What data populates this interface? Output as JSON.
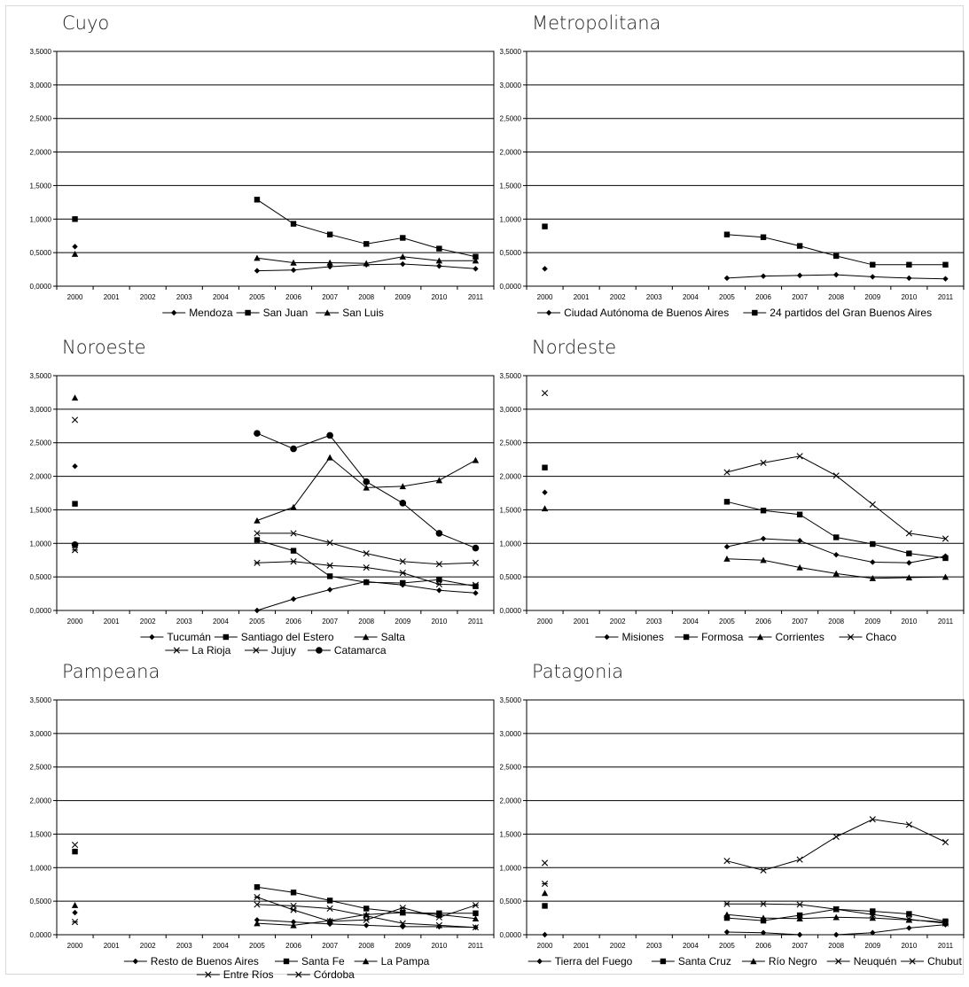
{
  "chart_data": [
    {
      "type": "line",
      "title": "Cuyo",
      "xlabel": "",
      "ylabel": "",
      "x": [
        "2000",
        "2001",
        "2002",
        "2003",
        "2004",
        "2005",
        "2006",
        "2007",
        "2008",
        "2009",
        "2010",
        "2011"
      ],
      "yticks": [
        "0,0000",
        "0,5000",
        "1,0000",
        "1,5000",
        "2,0000",
        "2,5000",
        "3,0000",
        "3,5000"
      ],
      "ylim": [
        0,
        3.5
      ],
      "grid": true,
      "legend": "bottom",
      "legend_rows": [
        [
          0,
          1,
          2
        ]
      ],
      "series": [
        {
          "name": "Mendoza",
          "marker": "diamond",
          "values": [
            0.59,
            null,
            null,
            null,
            null,
            0.23,
            0.24,
            0.29,
            0.32,
            0.33,
            0.3,
            0.26
          ]
        },
        {
          "name": "San Juan",
          "marker": "square",
          "values": [
            1.0,
            null,
            null,
            null,
            null,
            1.29,
            0.93,
            0.77,
            0.63,
            0.72,
            0.56,
            0.44
          ]
        },
        {
          "name": "San Luis",
          "marker": "triangle",
          "values": [
            0.48,
            null,
            null,
            null,
            null,
            0.42,
            0.35,
            0.35,
            0.34,
            0.44,
            0.38,
            0.38
          ]
        }
      ]
    },
    {
      "type": "line",
      "title": "Metropolitana",
      "xlabel": "",
      "ylabel": "",
      "x": [
        "2000",
        "2001",
        "2002",
        "2003",
        "2004",
        "2005",
        "2006",
        "2007",
        "2008",
        "2009",
        "2010",
        "2011"
      ],
      "yticks": [
        "0,0000",
        "0,5000",
        "1,0000",
        "1,5000",
        "2,0000",
        "2,5000",
        "3,0000",
        "3,5000"
      ],
      "ylim": [
        0,
        3.5
      ],
      "grid": true,
      "legend": "bottom",
      "legend_rows": [
        [
          0,
          1
        ]
      ],
      "series": [
        {
          "name": "Ciudad Autónoma de Buenos Aires",
          "marker": "diamond",
          "values": [
            0.26,
            null,
            null,
            null,
            null,
            0.12,
            0.15,
            0.16,
            0.17,
            0.14,
            0.12,
            0.11
          ]
        },
        {
          "name": "24 partidos del Gran Buenos Aires",
          "marker": "square",
          "values": [
            0.89,
            null,
            null,
            null,
            null,
            0.77,
            0.73,
            0.6,
            0.45,
            0.32,
            0.32,
            0.32
          ]
        }
      ]
    },
    {
      "type": "line",
      "title": "Noroeste",
      "xlabel": "",
      "ylabel": "",
      "x": [
        "2000",
        "2001",
        "2002",
        "2003",
        "2004",
        "2005",
        "2006",
        "2007",
        "2008",
        "2009",
        "2010",
        "2011"
      ],
      "yticks": [
        "0,0000",
        "0,5000",
        "1,0000",
        "1,5000",
        "2,0000",
        "2,5000",
        "3,0000",
        "3,5000"
      ],
      "ylim": [
        0,
        3.5
      ],
      "grid": true,
      "legend": "bottom",
      "legend_rows": [
        [
          0,
          1,
          2
        ],
        [
          3,
          4,
          5
        ]
      ],
      "series": [
        {
          "name": "Tucumán",
          "marker": "diamond",
          "values": [
            2.15,
            null,
            null,
            null,
            null,
            0.0,
            0.17,
            0.31,
            0.43,
            0.38,
            0.3,
            0.26
          ]
        },
        {
          "name": "Santiago del Estero",
          "marker": "square",
          "values": [
            1.59,
            null,
            null,
            null,
            null,
            1.05,
            0.89,
            0.51,
            0.42,
            0.41,
            0.46,
            0.36
          ]
        },
        {
          "name": "Salta",
          "marker": "triangle",
          "values": [
            3.17,
            null,
            null,
            null,
            null,
            1.34,
            1.54,
            2.28,
            1.83,
            1.85,
            1.94,
            2.24
          ]
        },
        {
          "name": "La Rioja",
          "marker": "plus-x",
          "values": [
            0.9,
            null,
            null,
            null,
            null,
            0.71,
            0.73,
            0.67,
            0.64,
            0.56,
            0.39,
            0.38
          ]
        },
        {
          "name": "Jujuy",
          "marker": "x",
          "values": [
            2.84,
            null,
            null,
            null,
            null,
            1.15,
            1.15,
            1.01,
            0.85,
            0.73,
            0.69,
            0.71
          ]
        },
        {
          "name": "Catamarca",
          "marker": "circle",
          "values": [
            0.98,
            null,
            null,
            null,
            null,
            2.64,
            2.41,
            2.61,
            1.92,
            1.6,
            1.15,
            0.93
          ]
        }
      ]
    },
    {
      "type": "line",
      "title": "Nordeste",
      "xlabel": "",
      "ylabel": "",
      "x": [
        "2000",
        "2001",
        "2002",
        "2003",
        "2004",
        "2005",
        "2006",
        "2007",
        "2008",
        "2009",
        "2010",
        "2011"
      ],
      "yticks": [
        "0,0000",
        "0,5000",
        "1,0000",
        "1,5000",
        "2,0000",
        "2,5000",
        "3,0000",
        "3,5000"
      ],
      "ylim": [
        0,
        3.5
      ],
      "grid": true,
      "legend": "bottom",
      "legend_rows": [
        [
          0,
          1,
          2,
          3
        ]
      ],
      "series": [
        {
          "name": "Misiones",
          "marker": "diamond",
          "values": [
            1.76,
            null,
            null,
            null,
            null,
            0.95,
            1.07,
            1.04,
            0.83,
            0.72,
            0.71,
            0.81
          ]
        },
        {
          "name": "Formosa",
          "marker": "square",
          "values": [
            2.13,
            null,
            null,
            null,
            null,
            1.62,
            1.49,
            1.43,
            1.09,
            0.99,
            0.85,
            0.78
          ]
        },
        {
          "name": "Corrientes",
          "marker": "triangle",
          "values": [
            1.52,
            null,
            null,
            null,
            null,
            0.77,
            0.75,
            0.64,
            0.55,
            0.48,
            0.49,
            0.5
          ]
        },
        {
          "name": "Chaco",
          "marker": "x",
          "values": [
            3.24,
            null,
            null,
            null,
            null,
            2.06,
            2.2,
            2.3,
            2.01,
            1.58,
            1.15,
            1.07
          ]
        }
      ]
    },
    {
      "type": "line",
      "title": "Pampeana",
      "xlabel": "",
      "ylabel": "",
      "x": [
        "2000",
        "2001",
        "2002",
        "2003",
        "2004",
        "2005",
        "2006",
        "2007",
        "2008",
        "2009",
        "2010",
        "2011"
      ],
      "yticks": [
        "0,0000",
        "0,5000",
        "1,0000",
        "1,5000",
        "2,0000",
        "2,5000",
        "3,0000",
        "3,5000"
      ],
      "ylim": [
        0,
        3.5
      ],
      "grid": true,
      "legend": "bottom",
      "legend_rows": [
        [
          0,
          1,
          2
        ],
        [
          3,
          4
        ]
      ],
      "series": [
        {
          "name": "Resto de Buenos Aires",
          "marker": "diamond",
          "values": [
            0.33,
            null,
            null,
            null,
            null,
            0.22,
            0.19,
            0.16,
            0.14,
            0.12,
            0.12,
            0.11
          ]
        },
        {
          "name": "Santa Fe",
          "marker": "square",
          "values": [
            1.24,
            null,
            null,
            null,
            null,
            0.71,
            0.63,
            0.51,
            0.39,
            0.33,
            0.32,
            0.32
          ]
        },
        {
          "name": "La Pampa",
          "marker": "triangle",
          "values": [
            0.44,
            null,
            null,
            null,
            null,
            0.17,
            0.14,
            0.21,
            0.3,
            0.33,
            0.3,
            0.24
          ]
        },
        {
          "name": "Entre Ríos",
          "marker": "plus-x",
          "values": [
            0.19,
            null,
            null,
            null,
            null,
            0.56,
            0.37,
            0.2,
            0.22,
            0.4,
            0.26,
            0.44
          ]
        },
        {
          "name": "Córdoba",
          "marker": "x",
          "values": [
            1.34,
            null,
            null,
            null,
            null,
            0.45,
            0.43,
            0.39,
            0.28,
            0.17,
            0.14,
            0.11
          ]
        }
      ]
    },
    {
      "type": "line",
      "title": "Patagonia",
      "xlabel": "",
      "ylabel": "",
      "x": [
        "2000",
        "2001",
        "2002",
        "2003",
        "2004",
        "2005",
        "2006",
        "2007",
        "2008",
        "2009",
        "2010",
        "2011"
      ],
      "yticks": [
        "0,0000",
        "0,5000",
        "1,0000",
        "1,5000",
        "2,0000",
        "2,5000",
        "3,0000",
        "3,5000"
      ],
      "ylim": [
        0,
        3.5
      ],
      "grid": true,
      "legend": "bottom",
      "legend_rows": [
        [
          0,
          1,
          2,
          3,
          4
        ]
      ],
      "series": [
        {
          "name": "Tierra del Fuego",
          "marker": "diamond",
          "values": [
            0.0,
            null,
            null,
            null,
            null,
            0.04,
            0.03,
            0.0,
            0.0,
            0.03,
            0.1,
            0.15
          ]
        },
        {
          "name": "Santa Cruz",
          "marker": "square",
          "values": [
            0.43,
            null,
            null,
            null,
            null,
            0.25,
            0.21,
            0.29,
            0.38,
            0.35,
            0.31,
            0.2
          ]
        },
        {
          "name": "Río Negro",
          "marker": "triangle",
          "values": [
            0.62,
            null,
            null,
            null,
            null,
            0.3,
            0.25,
            0.24,
            0.26,
            0.25,
            0.22,
            0.19
          ]
        },
        {
          "name": "Neuquén",
          "marker": "plus-x",
          "values": [
            0.76,
            null,
            null,
            null,
            null,
            0.46,
            0.46,
            0.45,
            0.38,
            0.3,
            0.23,
            0.17
          ]
        },
        {
          "name": "Chubut",
          "marker": "x",
          "values": [
            1.07,
            null,
            null,
            null,
            null,
            1.1,
            0.96,
            1.12,
            1.46,
            1.72,
            1.64,
            1.38
          ]
        }
      ]
    }
  ]
}
